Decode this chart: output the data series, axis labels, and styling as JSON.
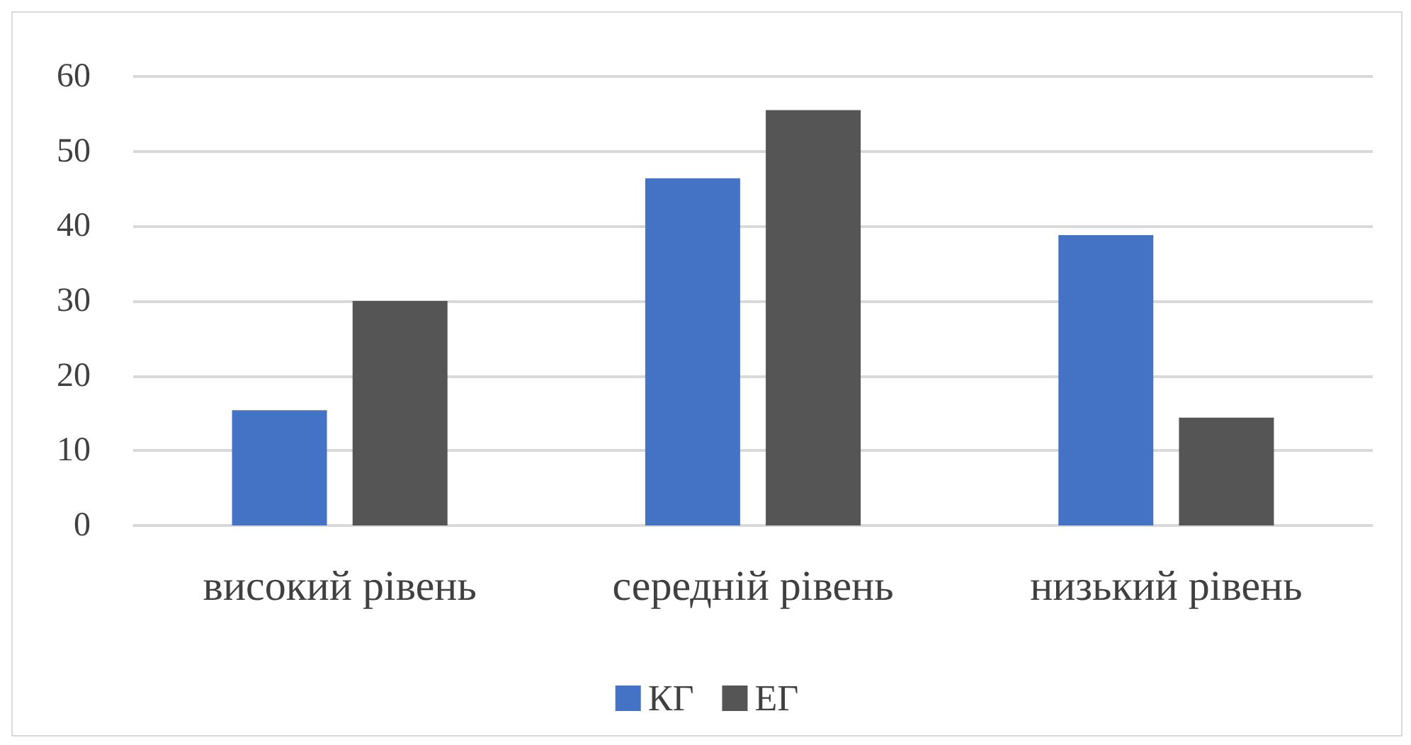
{
  "chart_data": {
    "type": "bar",
    "categories": [
      "високий рівень",
      "середній рівень",
      "низький рівень"
    ],
    "series": [
      {
        "name": "КГ",
        "color": "#4472c4",
        "values": [
          15.4,
          46.4,
          38.8
        ]
      },
      {
        "name": "ЕГ",
        "color": "#555555",
        "values": [
          30.0,
          55.5,
          14.4
        ]
      }
    ],
    "ylim": [
      0,
      60
    ],
    "yticks": [
      0,
      10,
      20,
      30,
      40,
      50,
      60
    ],
    "grid": "y",
    "legend": "bottom"
  }
}
